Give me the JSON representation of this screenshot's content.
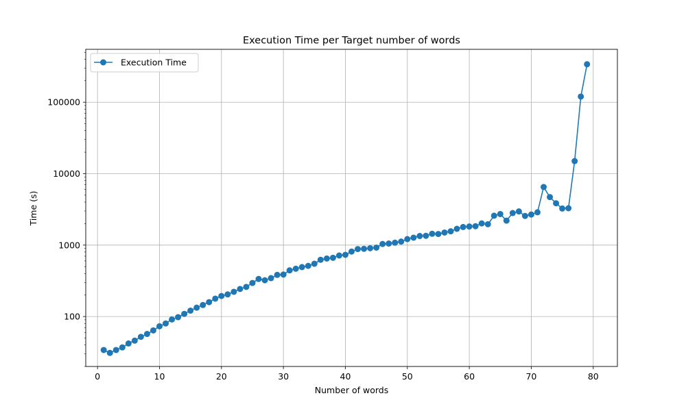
{
  "chart_data": {
    "type": "line",
    "title": "Execution Time per Target number of words",
    "xlabel": "Number of words",
    "ylabel": "Time (s)",
    "xlim": [
      -1.9,
      83.9
    ],
    "ylim": [
      20,
      550000
    ],
    "yscale": "log",
    "grid": true,
    "legend": "top-left",
    "x_ticks": [
      0,
      10,
      20,
      30,
      40,
      50,
      60,
      70,
      80
    ],
    "y_ticks": [
      100,
      1000,
      10000,
      100000
    ],
    "x_tick_labels": [
      "0",
      "10",
      "20",
      "30",
      "40",
      "50",
      "60",
      "70",
      "80"
    ],
    "y_tick_labels": [
      "100",
      "1000",
      "10000",
      "100000"
    ],
    "color": "#1f77b4",
    "series": [
      {
        "name": "Execution Time",
        "x": [
          1,
          2,
          3,
          4,
          5,
          6,
          7,
          8,
          9,
          10,
          11,
          12,
          13,
          14,
          15,
          16,
          17,
          18,
          19,
          20,
          21,
          22,
          23,
          24,
          25,
          26,
          27,
          28,
          29,
          30,
          31,
          32,
          33,
          34,
          35,
          36,
          37,
          38,
          39,
          40,
          41,
          42,
          43,
          44,
          45,
          46,
          47,
          48,
          49,
          50,
          51,
          52,
          53,
          54,
          55,
          56,
          57,
          58,
          59,
          60,
          61,
          62,
          63,
          64,
          65,
          66,
          67,
          68,
          69,
          70,
          71,
          72,
          73,
          74,
          75,
          76,
          77,
          78,
          79
        ],
        "y": [
          34,
          31,
          34,
          37,
          42,
          46,
          52,
          57,
          64,
          73,
          80,
          91,
          98,
          109,
          121,
          133,
          145,
          159,
          178,
          194,
          204,
          222,
          243,
          260,
          295,
          336,
          322,
          345,
          383,
          387,
          443,
          467,
          492,
          512,
          548,
          623,
          649,
          664,
          715,
          731,
          812,
          880,
          887,
          905,
          923,
          1037,
          1051,
          1081,
          1120,
          1214,
          1270,
          1340,
          1350,
          1440,
          1430,
          1500,
          1560,
          1690,
          1790,
          1820,
          1840,
          2010,
          1960,
          2580,
          2720,
          2200,
          2810,
          2960,
          2560,
          2680,
          2880,
          6500,
          4700,
          3850,
          3250,
          3280,
          15000,
          120000,
          340000
        ]
      }
    ]
  }
}
